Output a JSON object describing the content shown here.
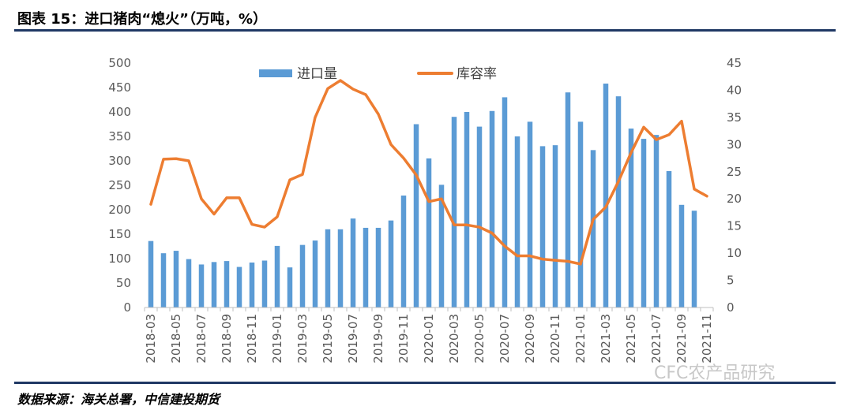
{
  "figure_title": "图表 15：进口猪肉“熄火”（万吨，%）",
  "source_note": "数据来源：海关总署，中信建投期货",
  "watermark": "CFC农产品研究",
  "colors": {
    "bar": "#5b9bd5",
    "line": "#ed7d31",
    "axis": "#bfbfbf",
    "rule": "#1f3864",
    "text": "#595959"
  },
  "chart_data": {
    "type": "bar+line",
    "title": "",
    "x": [
      "2018-03",
      "2018-04",
      "2018-05",
      "2018-06",
      "2018-07",
      "2018-08",
      "2018-09",
      "2018-10",
      "2018-11",
      "2018-12",
      "2019-01",
      "2019-02",
      "2019-03",
      "2019-04",
      "2019-05",
      "2019-06",
      "2019-07",
      "2019-08",
      "2019-09",
      "2019-10",
      "2019-11",
      "2019-12",
      "2020-01",
      "2020-02",
      "2020-03",
      "2020-04",
      "2020-05",
      "2020-06",
      "2020-07",
      "2020-08",
      "2020-09",
      "2020-10",
      "2020-11",
      "2020-12",
      "2021-01",
      "2021-02",
      "2021-03",
      "2021-04",
      "2021-05",
      "2021-06",
      "2021-07",
      "2021-08",
      "2021-09",
      "2021-10",
      "2021-11"
    ],
    "x_tick_labels": [
      "2018-03",
      "2018-05",
      "2018-07",
      "2018-09",
      "2018-11",
      "2019-01",
      "2019-03",
      "2019-05",
      "2019-07",
      "2019-09",
      "2019-11",
      "2020-01",
      "2020-03",
      "2020-05",
      "2020-07",
      "2020-09",
      "2020-11",
      "2021-01",
      "2021-03",
      "2021-05",
      "2021-07",
      "2021-09",
      "2021-11"
    ],
    "series": [
      {
        "name": "进口量",
        "type": "bar",
        "axis": "left",
        "values": [
          136,
          111,
          116,
          99,
          88,
          93,
          95,
          83,
          92,
          96,
          126,
          82,
          128,
          137,
          160,
          160,
          182,
          163,
          163,
          178,
          229,
          375,
          305,
          251,
          390,
          400,
          370,
          402,
          430,
          350,
          380,
          330,
          332,
          440,
          380,
          322,
          458,
          432,
          366,
          345,
          353,
          279,
          210,
          198,
          null
        ]
      },
      {
        "name": "库容率",
        "type": "line",
        "axis": "right",
        "values": [
          19,
          27.3,
          27.4,
          27,
          20,
          17.2,
          20.2,
          20.2,
          15.3,
          14.8,
          16.7,
          23.5,
          24.5,
          35,
          40.3,
          41.8,
          40.2,
          39.2,
          35.6,
          30,
          27.5,
          24.4,
          19.5,
          20,
          15.2,
          15.2,
          14.8,
          13.7,
          11.3,
          9.5,
          9.5,
          8.9,
          8.7,
          8.5,
          8,
          16.2,
          18.5,
          23.2,
          28.5,
          33.2,
          30.9,
          31.8,
          34.3,
          21.8,
          20.5
        ]
      }
    ],
    "y_left": {
      "ylim": [
        0,
        500
      ],
      "ticks": [
        0,
        50,
        100,
        150,
        200,
        250,
        300,
        350,
        400,
        450,
        500
      ]
    },
    "y_right": {
      "ylim": [
        0,
        45
      ],
      "ticks": [
        0,
        5,
        10,
        15,
        20,
        25,
        30,
        35,
        40,
        45
      ]
    },
    "legend": {
      "position": "top",
      "entries": [
        "进口量",
        "库容率"
      ]
    },
    "grid": false
  }
}
